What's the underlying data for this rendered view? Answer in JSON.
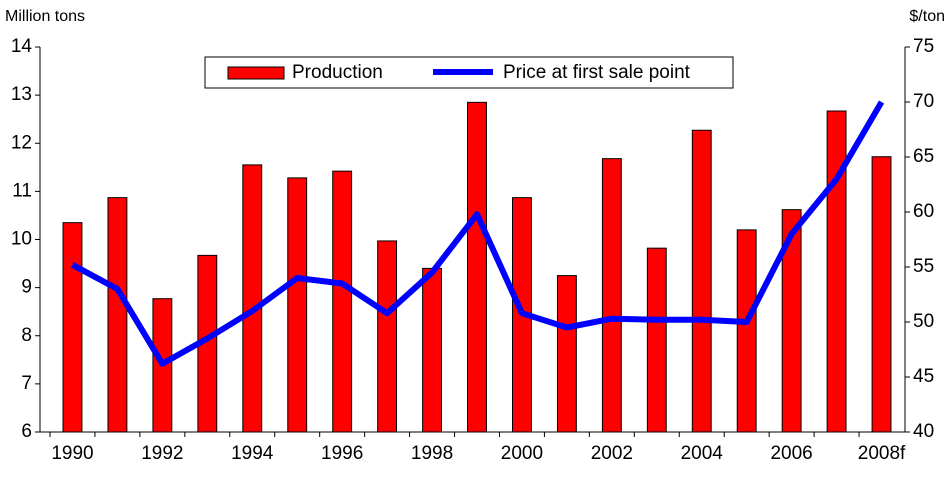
{
  "chart_data": {
    "type": "bar-line",
    "y_label": "Million tons",
    "y2_label": "$/ton",
    "categories": [
      "1990",
      null,
      "1992",
      null,
      "1994",
      null,
      "1996",
      null,
      "1998",
      null,
      "2000",
      null,
      "2002",
      null,
      "2004",
      null,
      "2006",
      null,
      "2008f"
    ],
    "series": [
      {
        "name": "Production",
        "type": "bar",
        "color": "#ff0000",
        "values": [
          10.35,
          10.87,
          8.77,
          9.67,
          11.55,
          11.28,
          11.42,
          9.97,
          9.4,
          12.85,
          10.87,
          9.25,
          11.68,
          9.82,
          12.27,
          10.2,
          10.62,
          12.67,
          11.72
        ]
      },
      {
        "name": "Price at first sale point",
        "type": "line",
        "axis": "y2",
        "color": "#0000ff",
        "values": [
          55.2,
          53,
          46.2,
          48.5,
          51,
          54,
          53.5,
          50.8,
          54.5,
          59.8,
          50.8,
          49.5,
          50.3,
          50.2,
          50.2,
          50,
          58,
          63,
          70
        ]
      }
    ],
    "ylim": [
      6,
      14
    ],
    "yticks": [
      6,
      7,
      8,
      9,
      10,
      11,
      12,
      13,
      14
    ],
    "y2lim": [
      40,
      75
    ],
    "y2ticks": [
      40,
      45,
      50,
      55,
      60,
      65,
      70,
      75
    ],
    "grid": false,
    "legend": "top"
  }
}
